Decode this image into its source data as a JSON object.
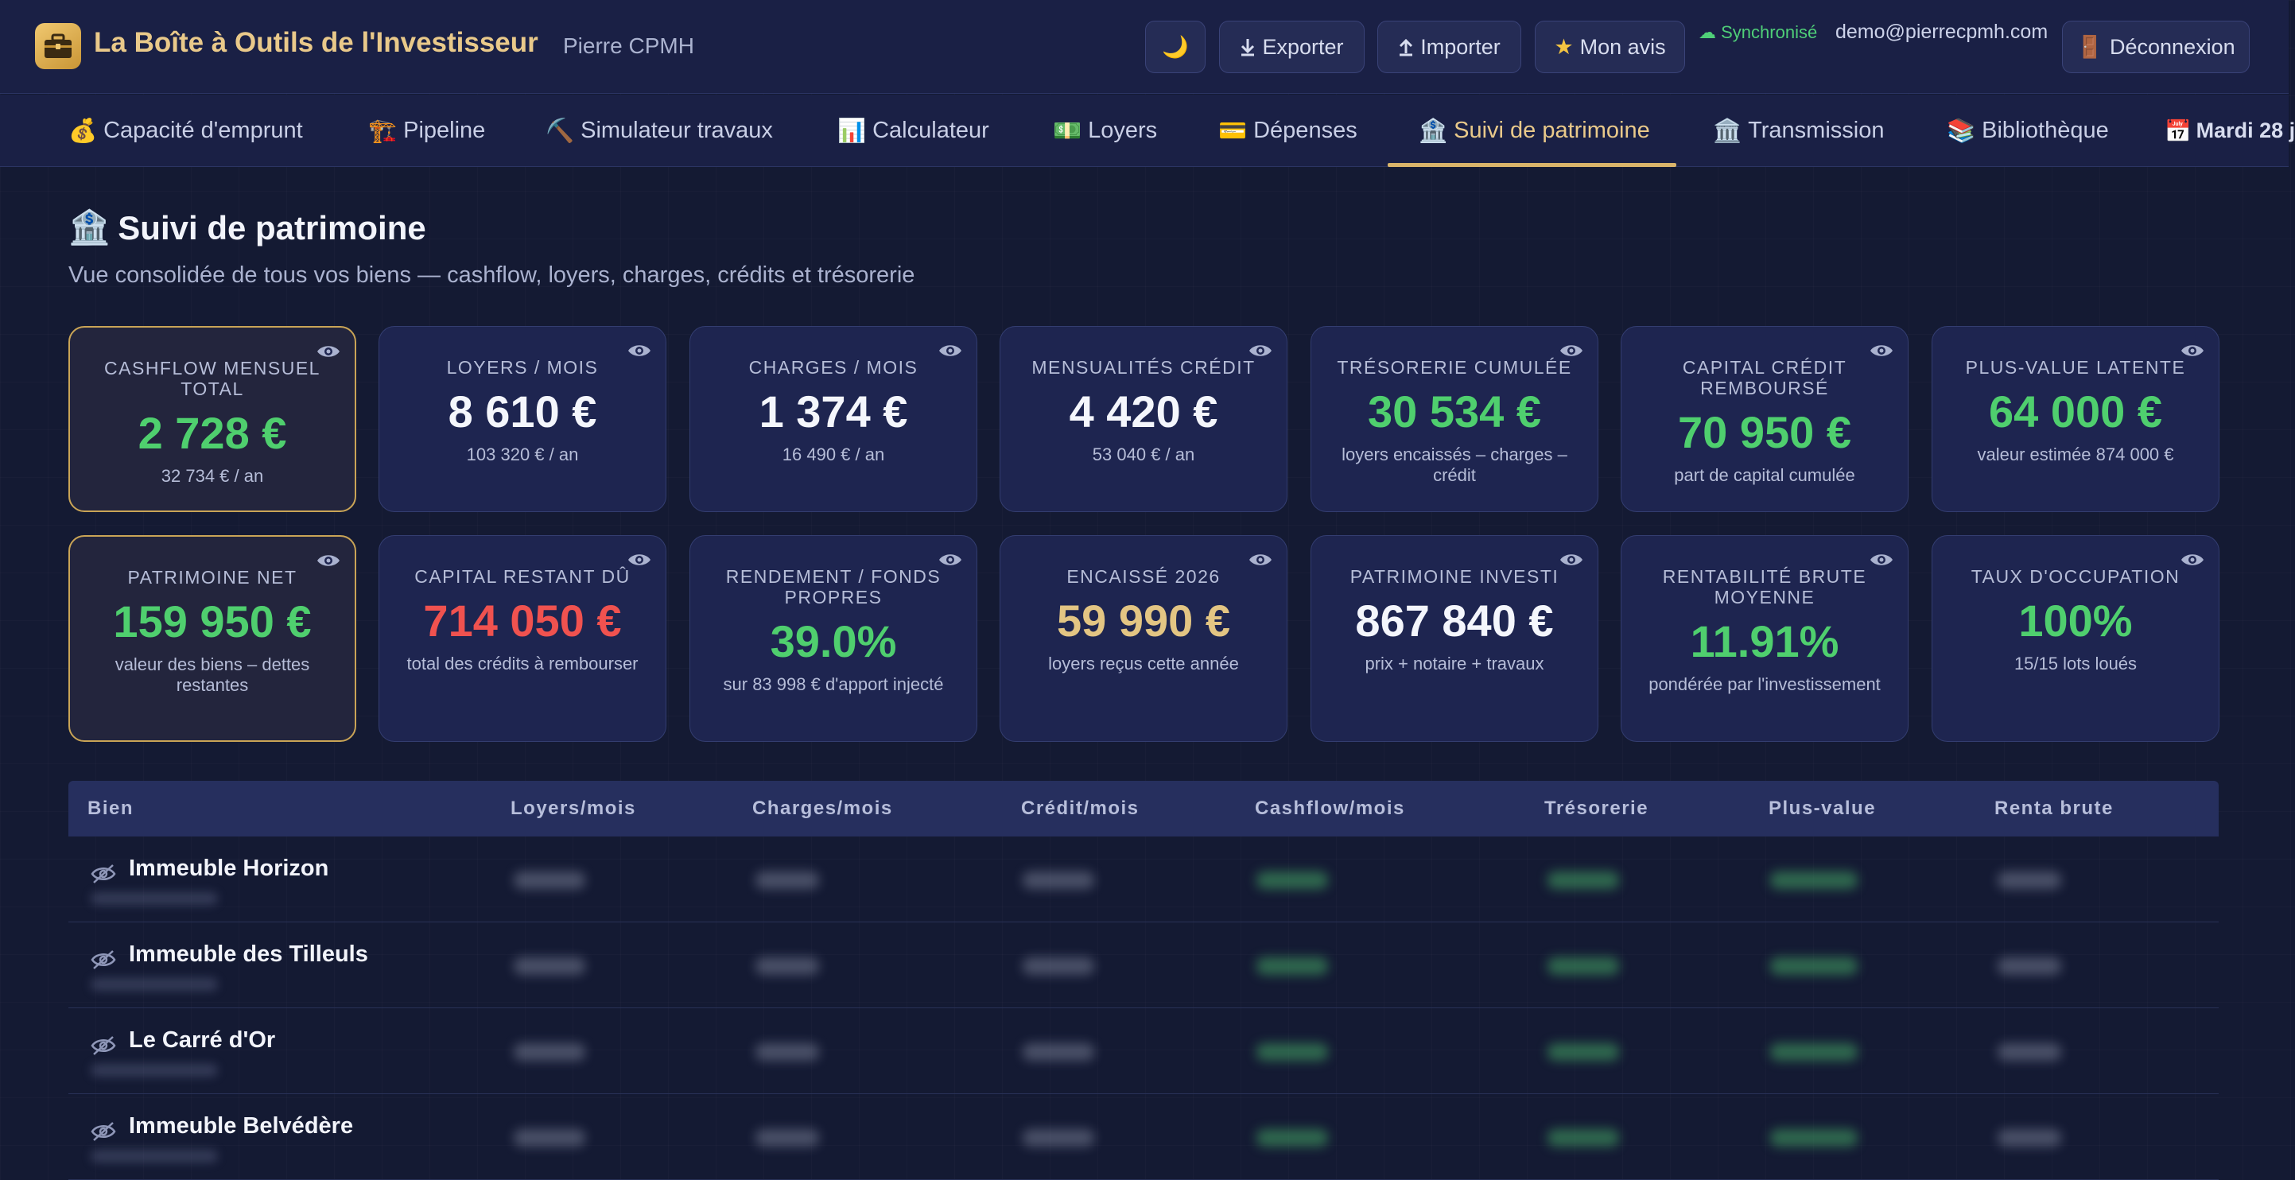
{
  "header": {
    "app_title": "La Boîte à Outils de l'Investisseur",
    "user_name": "Pierre CPMH",
    "theme_icon": "🌙",
    "export_label": "Exporter",
    "import_label": "Importer",
    "review_label": "Mon avis",
    "sync_status": "Synchronisé",
    "email": "demo@pierrecpmh.com",
    "logout_label": "Déconnexion"
  },
  "tabs": [
    {
      "icon": "💰",
      "label": "Capacité d'emprunt"
    },
    {
      "icon": "🏗️",
      "label": "Pipeline"
    },
    {
      "icon": "⛏️",
      "label": "Simulateur travaux"
    },
    {
      "icon": "📊",
      "label": "Calculateur"
    },
    {
      "icon": "💵",
      "label": "Loyers"
    },
    {
      "icon": "💳",
      "label": "Dépenses"
    },
    {
      "icon": "🏦",
      "label": "Suivi de patrimoine"
    },
    {
      "icon": "🏛️",
      "label": "Transmission"
    },
    {
      "icon": "📚",
      "label": "Bibliothèque"
    }
  ],
  "active_tab": "Suivi de patrimoine",
  "date_label": "Mardi 28 j",
  "page": {
    "icon": "🏦",
    "title": "Suivi de patrimoine",
    "subtitle": "Vue consolidée de tous vos biens — cashflow, loyers, charges, crédits et trésorerie"
  },
  "kpis_row1": [
    {
      "label": "Cashflow mensuel total",
      "value": "2 728 €",
      "sub": "32 734 € / an",
      "tone": "green",
      "highlight": true
    },
    {
      "label": "Loyers / mois",
      "value": "8 610 €",
      "sub": "103 320 € / an",
      "tone": "white",
      "highlight": false
    },
    {
      "label": "Charges / mois",
      "value": "1 374 €",
      "sub": "16 490 € / an",
      "tone": "white",
      "highlight": false
    },
    {
      "label": "Mensualités crédit",
      "value": "4 420 €",
      "sub": "53 040 € / an",
      "tone": "white",
      "highlight": false
    },
    {
      "label": "Trésorerie cumulée",
      "value": "30 534 €",
      "sub": "loyers encaissés – charges – crédit",
      "tone": "green",
      "highlight": false
    },
    {
      "label": "Capital crédit remboursé",
      "value": "70 950 €",
      "sub": "part de capital cumulée",
      "tone": "green",
      "highlight": false
    },
    {
      "label": "Plus-value latente",
      "value": "64 000 €",
      "sub": "valeur estimée 874 000 €",
      "tone": "green",
      "highlight": false
    }
  ],
  "kpis_row2": [
    {
      "label": "Patrimoine net",
      "value": "159 950 €",
      "sub": "valeur des biens – dettes restantes",
      "tone": "green",
      "highlight": true
    },
    {
      "label": "Capital restant dû",
      "value": "714 050 €",
      "sub": "total des crédits à rembourser",
      "tone": "red",
      "highlight": false
    },
    {
      "label": "Rendement / fonds propres",
      "value": "39.0%",
      "sub": "sur 83 998 € d'apport injecté",
      "tone": "green",
      "highlight": false
    },
    {
      "label": "Encaissé 2026",
      "value": "59 990 €",
      "sub": "loyers reçus cette année",
      "tone": "gold",
      "highlight": false
    },
    {
      "label": "Patrimoine investi",
      "value": "867 840 €",
      "sub": "prix + notaire + travaux",
      "tone": "white",
      "highlight": false
    },
    {
      "label": "Rentabilité brute moyenne",
      "value": "11.91%",
      "sub": "pondérée par l'investissement",
      "tone": "green",
      "highlight": false
    },
    {
      "label": "Taux d'occupation",
      "value": "100%",
      "sub": "15/15 lots loués",
      "tone": "green",
      "highlight": false
    }
  ],
  "table": {
    "columns": [
      "Bien",
      "Loyers/mois",
      "Charges/mois",
      "Crédit/mois",
      "Cashflow/mois",
      "Trésorerie",
      "Plus-value",
      "Renta brute"
    ],
    "rows": [
      {
        "name": "Immeuble Horizon"
      },
      {
        "name": "Immeuble des Tilleuls"
      },
      {
        "name": "Le Carré d'Or"
      },
      {
        "name": "Immeuble Belvédère"
      }
    ]
  },
  "colors": {
    "background": "#141a33",
    "header_bg": "#1a2045",
    "accent_gold": "#e9c98a",
    "positive_green": "#4fcf6e",
    "negative_red": "#f0524f"
  }
}
